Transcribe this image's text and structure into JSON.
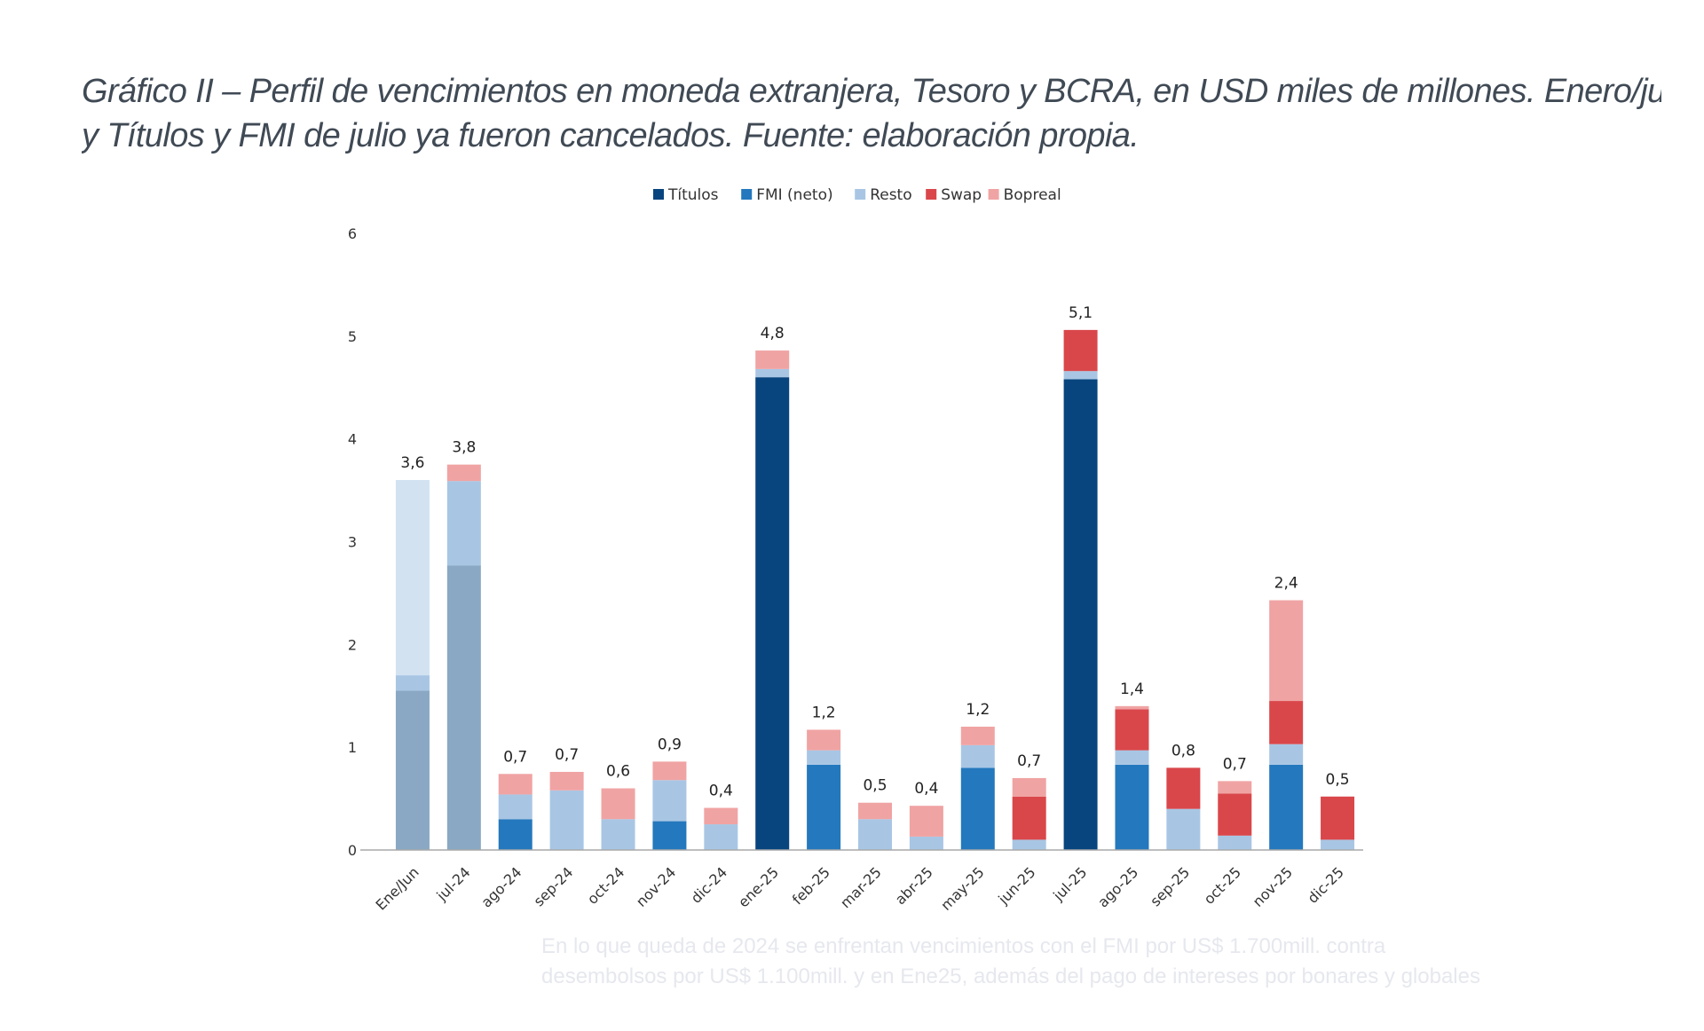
{
  "caption": {
    "line1": "Gráfico II – Perfil de vencimientos en moneda extranjera, Tesoro y BCRA, en USD miles de millones. Enero/junio",
    "line2": "y Títulos y FMI de julio ya fueron cancelados. Fuente: elaboración propia."
  },
  "background_text": {
    "line1": "En lo que queda de 2024 se enfrentan vencimientos con el FMI por US$ 1.700mill. contra",
    "line2": "desembolsos por US$ 1.100mill. y en Ene25, además del pago de intereses por bonares y globales"
  },
  "chart_data": {
    "type": "bar",
    "stacked": true,
    "title": "",
    "xlabel": "",
    "ylabel": "",
    "ylim": [
      0,
      6
    ],
    "yticks": [
      "0",
      "1",
      "2",
      "3",
      "4",
      "5",
      "6"
    ],
    "legend_position": "top-center",
    "categories": [
      "Ene/Jun",
      "jul-24",
      "ago-24",
      "sep-24",
      "oct-24",
      "nov-24",
      "dic-24",
      "ene-25",
      "feb-25",
      "mar-25",
      "abr-25",
      "may-25",
      "jun-25",
      "jul-25",
      "ago-25",
      "sep-25",
      "oct-25",
      "nov-25",
      "dic-25"
    ],
    "totals": [
      "3,6",
      "3,8",
      "0,7",
      "0,7",
      "0,6",
      "0,9",
      "0,4",
      "4,8",
      "1,2",
      "0,5",
      "0,4",
      "1,2",
      "0,7",
      "5,1",
      "1,4",
      "0,8",
      "0,7",
      "2,4",
      "0,5"
    ],
    "series": [
      {
        "name": "Títulos",
        "color": "#08457e",
        "values": [
          1.55,
          2.77,
          0,
          0,
          0,
          0,
          0,
          4.6,
          0,
          0,
          0,
          0,
          0,
          4.58,
          0,
          0,
          0,
          0,
          0
        ]
      },
      {
        "name": "FMI (neto)",
        "color": "#2478bd",
        "values": [
          0,
          0,
          0.3,
          0,
          0,
          0.28,
          0,
          0,
          0.83,
          0,
          0,
          0.8,
          0,
          0,
          0.83,
          0,
          0,
          0.83,
          0
        ]
      },
      {
        "name": "Resto",
        "color": "#a8c6e4",
        "values": [
          2.05,
          0.82,
          0.24,
          0.58,
          0.3,
          0.4,
          0.25,
          0.08,
          0.14,
          0.3,
          0.13,
          0.22,
          0.1,
          0.08,
          0.14,
          0.4,
          0.14,
          0.2,
          0.1
        ]
      },
      {
        "name": "Swap",
        "color": "#d9474b",
        "values": [
          0,
          0,
          0,
          0,
          0,
          0,
          0,
          0,
          0,
          0,
          0,
          0,
          0.42,
          0.4,
          0.4,
          0.4,
          0.41,
          0.42,
          0.42
        ]
      },
      {
        "name": "Bopreal",
        "color": "#f0a3a3",
        "values": [
          0,
          0.16,
          0.2,
          0.18,
          0.3,
          0.18,
          0.16,
          0.18,
          0.2,
          0.16,
          0.3,
          0.18,
          0.18,
          0,
          0.03,
          0,
          0.12,
          0.98,
          0
        ]
      }
    ],
    "faded_categories": [
      "Ene/Jun",
      "jul-24"
    ],
    "faded_colors": {
      "Ene/Jun": {
        "Títulos": "#8aa8c4",
        "Resto": "#d2e2f1",
        "Resto_lower": "#a8c6e4"
      },
      "jul-24": {
        "Títulos": "#8aa8c4",
        "Resto": "#a8c6e4",
        "Bopreal": "#f0a3a3"
      }
    }
  }
}
